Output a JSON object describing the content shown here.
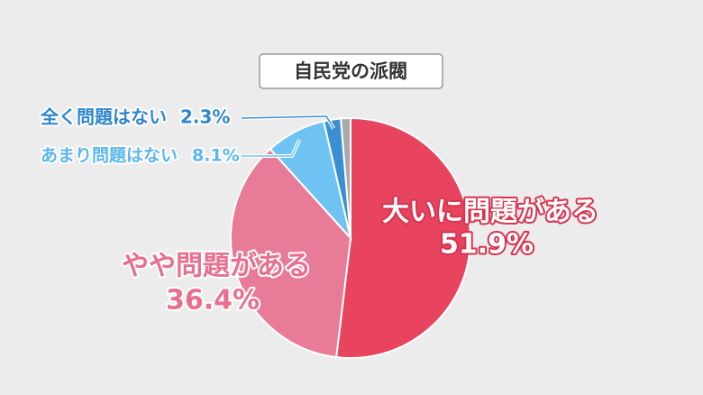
{
  "chart_data": {
    "type": "pie",
    "title": "自民党の派閥",
    "categories": [
      "大いに問題がある",
      "やや問題がある",
      "あまり問題はない",
      "全く問題はない",
      null
    ],
    "values": [
      51.9,
      36.4,
      8.1,
      2.3,
      1.3
    ],
    "value_labels": [
      "51.9%",
      "36.4%",
      "8.1%",
      "2.3%",
      null
    ],
    "colors": [
      "#e8445f",
      "#e87c98",
      "#6ec3f2",
      "#3a8fd2",
      "#a9a9a9"
    ]
  }
}
